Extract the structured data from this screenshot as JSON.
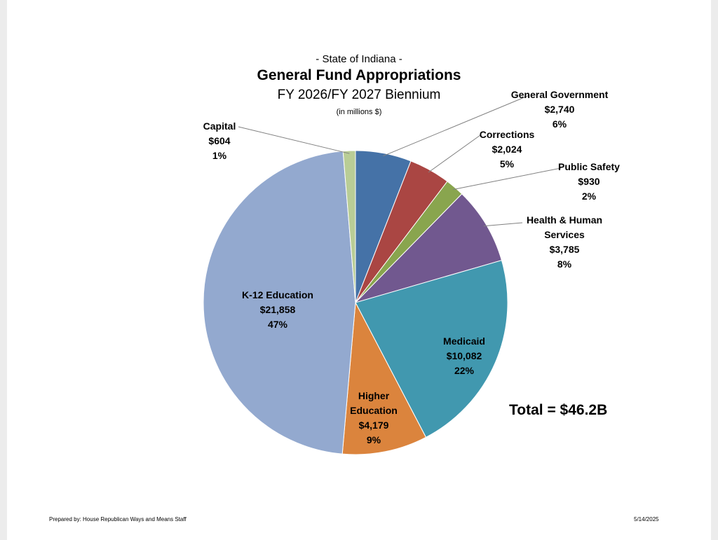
{
  "chart_data": {
    "type": "pie",
    "pretitle": "- State of Indiana -",
    "title": "General Fund Appropriations",
    "subtitle": "FY 2026/FY 2027 Biennium",
    "units": "(in millions $)",
    "slices": [
      {
        "name": "General Government",
        "value": 2740,
        "value_label": "$2,740",
        "pct": "6%",
        "color": "#4572a7"
      },
      {
        "name": "Corrections",
        "value": 2024,
        "value_label": "$2,024",
        "pct": "5%",
        "color": "#aa4643"
      },
      {
        "name": "Public Safety",
        "value": 930,
        "value_label": "$930",
        "pct": "2%",
        "color": "#89a54e"
      },
      {
        "name": "Health & Human Services",
        "name_lines": [
          "Health & Human",
          "Services"
        ],
        "value": 3785,
        "value_label": "$3,785",
        "pct": "8%",
        "color": "#71588f"
      },
      {
        "name": "Medicaid",
        "value": 10082,
        "value_label": "$10,082",
        "pct": "22%",
        "color": "#4198af"
      },
      {
        "name": "Higher Education",
        "name_lines": [
          "Higher",
          "Education"
        ],
        "value": 4179,
        "value_label": "$4,179",
        "pct": "9%",
        "color": "#db843d"
      },
      {
        "name": "K-12 Education",
        "value": 21858,
        "value_label": "$21,858",
        "pct": "47%",
        "color": "#93a9cf"
      },
      {
        "name": "Capital",
        "value": 604,
        "value_label": "$604",
        "pct": "1%",
        "color": "#b9cd96"
      }
    ],
    "total_label": "Total = $46.2B"
  },
  "footer": {
    "prepared_by": "Prepared by: House Republican Ways and Means Staff",
    "date": "5/14/2025"
  }
}
